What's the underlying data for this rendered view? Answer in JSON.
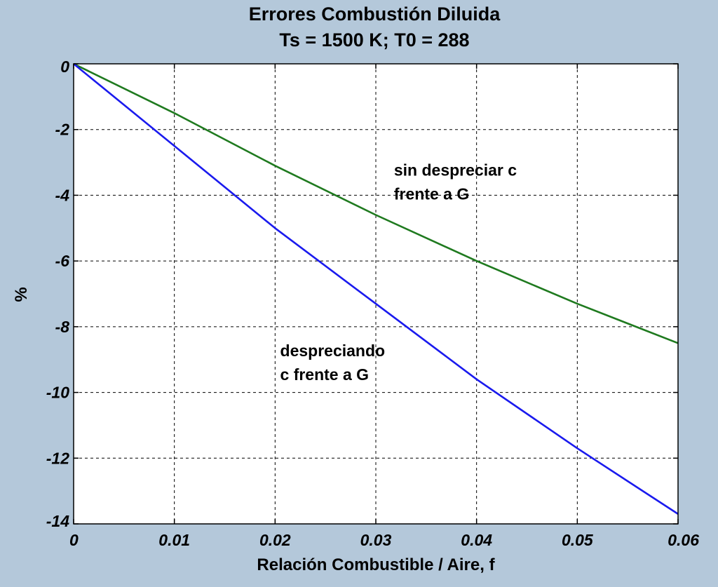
{
  "chart_data": {
    "type": "line",
    "title": "Errores Combustión Diluida",
    "subtitle": "Ts = 1500 K; T0 = 288",
    "xlabel": "Relación Combustible / Aire, f",
    "ylabel": "%",
    "xlim": [
      0,
      0.06
    ],
    "ylim": [
      -14,
      0
    ],
    "xticks": [
      0,
      0.01,
      0.02,
      0.03,
      0.04,
      0.05,
      0.06
    ],
    "xtick_labels": [
      "0",
      "0.01",
      "0.02",
      "0.03",
      "0.04",
      "0.05",
      "0.06"
    ],
    "yticks": [
      0,
      -2,
      -4,
      -6,
      -8,
      -10,
      -12,
      -14
    ],
    "ytick_labels": [
      "0",
      "-2",
      "-4",
      "-6",
      "-8",
      "-10",
      "-12",
      "-14"
    ],
    "grid": true,
    "series": [
      {
        "color": "#1f7a1f",
        "x": [
          0,
          0.01,
          0.02,
          0.03,
          0.04,
          0.05,
          0.06
        ],
        "y": [
          0,
          -1.5,
          -3.1,
          -4.6,
          -6.0,
          -7.3,
          -8.5
        ]
      },
      {
        "color": "#1a1aee",
        "x": [
          0,
          0.01,
          0.02,
          0.03,
          0.04,
          0.05,
          0.06
        ],
        "y": [
          0,
          -2.5,
          -5.0,
          -7.3,
          -9.6,
          -11.7,
          -13.7
        ]
      }
    ],
    "annotations": [
      {
        "lines": [
          "sin despreciar c",
          "frente a G"
        ],
        "x": 0.0318,
        "y": -3.4
      },
      {
        "lines": [
          "despreciando",
          "c frente a G"
        ],
        "x": 0.0205,
        "y": -8.9
      }
    ]
  }
}
